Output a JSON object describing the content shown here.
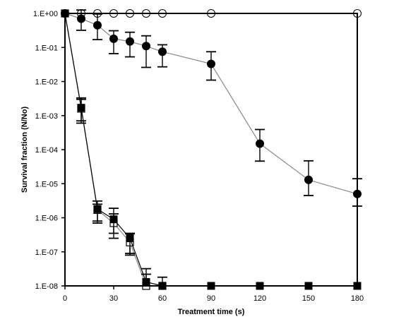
{
  "chart_data": {
    "type": "scatter",
    "title": "",
    "xlabel": "Treatment time (s)",
    "ylabel": "Survival fraction (N/No)",
    "xlim": [
      0,
      180
    ],
    "ylim": [
      1e-08,
      1
    ],
    "yscale": "log",
    "grid": false,
    "legend": "none",
    "x_ticks": [
      0,
      30,
      60,
      90,
      120,
      150,
      180
    ],
    "x_tick_labels": [
      "0",
      "30",
      "60",
      "90",
      "120",
      "150",
      "180"
    ],
    "y_ticks": [
      1,
      0.1,
      0.01,
      0.001,
      0.0001,
      1e-05,
      1e-06,
      1e-07,
      1e-08
    ],
    "y_tick_labels": [
      "1.E+00",
      "1.E-01",
      "1.E-02",
      "1.E-03",
      "1.E-04",
      "1.E-05",
      "1.E-06",
      "1.E-07",
      "1.E-08"
    ],
    "series": [
      {
        "marker": "open-circle",
        "color": "#000000",
        "line_color": "#000000",
        "x": [
          0,
          10,
          20,
          30,
          40,
          50,
          60,
          90,
          180
        ],
        "y": [
          1,
          1,
          1,
          1,
          1,
          1,
          1,
          1,
          1
        ],
        "err_low": [
          1,
          1,
          1,
          1,
          1,
          1,
          1,
          1,
          1
        ],
        "err_high": [
          1,
          1,
          1,
          1,
          1,
          1,
          1,
          1,
          1
        ]
      },
      {
        "marker": "filled-circle",
        "color": "#000000",
        "line_color": "#888888",
        "x": [
          0,
          10,
          20,
          30,
          40,
          50,
          60,
          90,
          120,
          150,
          180
        ],
        "y": [
          1,
          0.7,
          0.45,
          0.18,
          0.15,
          0.11,
          0.075,
          0.033,
          0.00015,
          1.3e-05,
          5e-06
        ],
        "err_low": [
          1,
          0.32,
          0.17,
          0.066,
          0.053,
          0.026,
          0.027,
          0.011,
          4.6e-05,
          4.5e-06,
          2.2e-06
        ],
        "err_high": [
          1,
          1.26,
          0.96,
          0.31,
          0.28,
          0.22,
          0.12,
          0.075,
          0.00039,
          4.7e-05,
          1.4e-05
        ]
      },
      {
        "marker": "open-square",
        "color": "#000000",
        "line_color": "#888888",
        "x": [
          0,
          10,
          20,
          30,
          40,
          50,
          60
        ],
        "y": [
          1,
          0.0016,
          1.7e-06,
          7e-07,
          1.9e-07,
          1e-08,
          1e-08
        ],
        "err_low": [
          1,
          0.0006,
          7e-07,
          2.5e-07,
          8e-08,
          1e-08,
          1e-08
        ],
        "err_high": [
          1,
          0.0033,
          3.1e-06,
          1.9e-06,
          3.4e-07,
          3.2e-08,
          1.8e-08
        ]
      },
      {
        "marker": "filled-square",
        "color": "#000000",
        "line_color": "#000000",
        "x": [
          0,
          10,
          20,
          30,
          40,
          50,
          60,
          90,
          120,
          150,
          180
        ],
        "y": [
          1,
          0.0017,
          1.8e-06,
          9e-07,
          2.5e-07,
          1.3e-08,
          1e-08,
          1e-08,
          1e-08,
          1e-08,
          1e-08
        ],
        "err_low": [
          1,
          0.0007,
          8e-07,
          3.5e-07,
          9e-08,
          1e-08,
          1e-08,
          1e-08,
          1e-08,
          1e-08,
          1e-08
        ],
        "err_high": [
          1,
          0.003,
          2.5e-06,
          1.3e-06,
          3.5e-07,
          2.2e-08,
          1e-08,
          1e-08,
          1e-08,
          1e-08,
          1e-08
        ]
      }
    ]
  }
}
